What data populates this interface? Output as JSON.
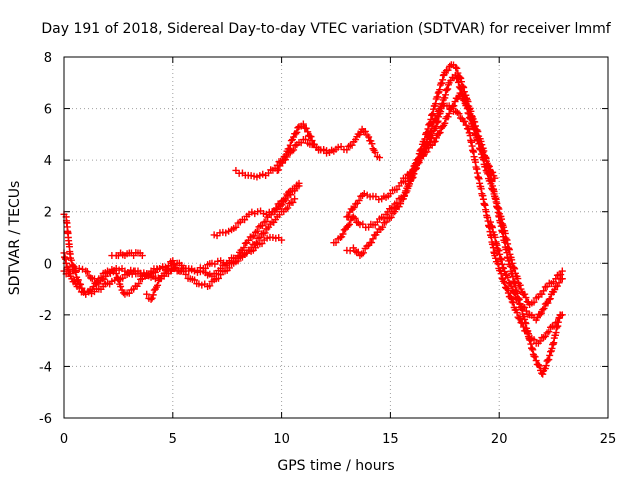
{
  "chart_data": {
    "type": "scatter",
    "title": "Day 191 of 2018, Sidereal Day-to-day VTEC variation (SDTVAR) for receiver lmmf",
    "xlabel": "GPS time / hours",
    "ylabel": "SDTVAR / TECUs",
    "xlim": [
      0,
      25
    ],
    "ylim": [
      -6,
      8
    ],
    "xticks": [
      0,
      5,
      10,
      15,
      20,
      25
    ],
    "yticks": [
      -6,
      -4,
      -2,
      0,
      2,
      4,
      6,
      8
    ],
    "grid": true,
    "marker": "plus",
    "color": "#ff0000",
    "series": [
      {
        "x": [
          0.0,
          0.1,
          0.2,
          0.3,
          0.5,
          0.7,
          1.0,
          1.3,
          1.6,
          2.0,
          2.4,
          2.6,
          2.8,
          3.2,
          3.6,
          4.0,
          4.4,
          4.8,
          5.2,
          5.6,
          6.0,
          6.4,
          6.8,
          7.2,
          7.6,
          8.0,
          8.4,
          8.8,
          9.2,
          9.6,
          10.0,
          10.4,
          10.8
        ],
        "y": [
          1.9,
          1.8,
          1.0,
          0.2,
          -0.3,
          -0.8,
          -1.2,
          -1.0,
          -0.6,
          -0.3,
          -0.4,
          -0.9,
          -1.2,
          -1.0,
          -0.6,
          -0.3,
          -0.2,
          -0.2,
          -0.3,
          -0.2,
          -0.3,
          -0.3,
          -0.5,
          -0.2,
          0.1,
          0.3,
          0.8,
          1.2,
          1.6,
          2.0,
          2.4,
          2.8,
          3.1
        ]
      },
      {
        "x": [
          0.0,
          0.1,
          0.3,
          0.6,
          1.0,
          1.4,
          1.8,
          2.2,
          2.6,
          3.0,
          3.4,
          3.8,
          4.2,
          4.6,
          5.0,
          5.4,
          5.8,
          6.2,
          6.6,
          7.0,
          7.4,
          7.8,
          8.2,
          8.6,
          9.0,
          9.4,
          9.8,
          10.2,
          10.6
        ],
        "y": [
          0.4,
          0.0,
          -0.5,
          -0.9,
          -1.2,
          -1.1,
          -0.9,
          -0.7,
          -0.6,
          -0.4,
          -0.3,
          -0.4,
          -0.6,
          -0.5,
          -0.2,
          -0.3,
          -0.6,
          -0.8,
          -0.9,
          -0.6,
          -0.3,
          0.0,
          0.3,
          0.6,
          1.0,
          1.4,
          1.8,
          2.1,
          2.5
        ]
      },
      {
        "x": [
          0.0,
          0.2,
          0.4,
          0.7,
          1.0,
          1.3,
          1.6,
          2.0,
          2.4,
          2.8,
          3.2,
          3.6,
          4.0,
          4.4,
          4.8,
          5.2,
          5.6,
          6.0,
          6.4,
          6.8,
          7.2,
          7.6,
          8.0,
          8.4,
          8.8,
          9.2,
          9.6,
          10.0
        ],
        "y": [
          -0.3,
          -0.4,
          -0.3,
          -0.2,
          -0.3,
          -0.6,
          -0.8,
          -0.4,
          -0.2,
          -0.3,
          -0.3,
          -0.5,
          -0.4,
          -0.2,
          -0.1,
          0.0,
          -0.2,
          -0.3,
          -0.2,
          0.0,
          0.1,
          0.0,
          0.2,
          0.4,
          0.6,
          0.9,
          1.0,
          0.9
        ]
      },
      {
        "x": [
          2.2,
          2.4,
          2.6,
          2.8,
          3.0,
          3.2,
          3.4,
          3.6
        ],
        "y": [
          0.3,
          0.3,
          0.4,
          0.3,
          0.4,
          0.3,
          0.4,
          0.3
        ]
      },
      {
        "x": [
          3.8,
          4.0,
          4.2,
          4.4,
          4.6,
          4.8,
          5.0
        ],
        "y": [
          -1.2,
          -1.4,
          -1.0,
          -0.6,
          -0.4,
          -0.1,
          0.1
        ]
      },
      {
        "x": [
          6.9,
          7.3,
          7.7,
          8.1,
          8.5,
          8.9,
          9.3,
          9.7,
          10.1,
          10.5,
          10.8
        ],
        "y": [
          1.1,
          1.2,
          1.3,
          1.6,
          1.9,
          2.0,
          1.9,
          2.0,
          2.4,
          2.8,
          3.0
        ]
      },
      {
        "x": [
          7.9,
          8.2,
          8.6,
          9.0,
          9.4,
          9.8,
          10.2,
          10.5,
          10.8,
          11.0,
          11.2,
          11.5,
          11.8,
          12.2,
          12.6,
          13.0,
          13.4,
          13.7,
          14.0,
          14.3,
          14.5
        ],
        "y": [
          3.6,
          3.5,
          3.4,
          3.4,
          3.5,
          3.8,
          4.2,
          4.8,
          5.3,
          5.4,
          5.1,
          4.6,
          4.4,
          4.3,
          4.5,
          4.4,
          4.8,
          5.2,
          4.9,
          4.3,
          4.1
        ]
      },
      {
        "x": [
          9.8,
          10.1,
          10.4,
          10.7,
          11.0,
          11.4,
          11.8,
          12.2
        ],
        "y": [
          3.6,
          4.0,
          4.3,
          4.6,
          4.8,
          4.6,
          4.4,
          4.3
        ]
      },
      {
        "x": [
          12.4,
          12.7,
          13.0,
          13.3,
          13.6,
          14.0,
          14.4,
          14.8,
          15.2,
          15.6,
          16.0,
          16.4,
          16.8,
          17.0,
          17.3,
          17.6,
          18.0,
          18.3,
          18.6,
          19.0,
          19.4,
          19.8,
          20.2,
          20.6,
          21.0,
          21.4,
          21.8,
          22.2,
          22.6,
          22.9
        ],
        "y": [
          0.8,
          1.0,
          1.4,
          1.8,
          1.5,
          1.4,
          1.6,
          1.9,
          2.3,
          2.6,
          3.3,
          4.2,
          5.0,
          5.5,
          6.0,
          6.1,
          5.9,
          5.6,
          5.2,
          3.5,
          2.0,
          0.3,
          -0.7,
          -1.5,
          -2.3,
          -2.9,
          -3.1,
          -2.7,
          -2.3,
          -2.0
        ]
      },
      {
        "x": [
          13.0,
          13.3,
          13.6,
          14.0,
          14.4,
          14.8,
          15.2,
          15.6,
          16.0,
          16.4,
          16.8,
          17.2,
          17.5,
          17.8,
          18.0,
          18.2,
          18.5,
          18.8,
          19.2,
          19.6,
          20.0,
          20.4,
          20.8,
          21.2,
          21.6,
          22.0,
          22.4,
          22.8
        ],
        "y": [
          0.5,
          0.6,
          0.3,
          0.7,
          1.2,
          1.6,
          2.0,
          2.5,
          3.4,
          4.4,
          5.4,
          6.6,
          7.4,
          7.7,
          7.6,
          7.2,
          6.4,
          5.6,
          4.6,
          3.4,
          1.8,
          0.2,
          -1.1,
          -2.3,
          -3.6,
          -4.3,
          -3.4,
          -2.0
        ]
      },
      {
        "x": [
          13.0,
          13.4,
          13.8,
          14.2,
          14.6,
          15.0,
          15.4,
          15.8,
          16.2,
          16.6,
          17.0,
          17.4,
          17.8,
          18.2,
          18.6,
          19.0,
          19.4,
          19.8,
          20.2,
          20.6,
          21.0,
          21.4,
          21.8,
          22.2,
          22.6,
          22.9
        ],
        "y": [
          1.8,
          2.3,
          2.7,
          2.6,
          2.5,
          2.7,
          3.0,
          3.3,
          3.9,
          4.3,
          4.7,
          5.3,
          6.0,
          6.6,
          6.0,
          4.8,
          3.6,
          2.6,
          1.4,
          0.0,
          -1.0,
          -1.6,
          -1.3,
          -0.9,
          -0.6,
          -0.3
        ]
      },
      {
        "x": [
          15.6,
          15.9,
          16.2,
          16.5,
          16.8,
          17.1,
          17.4,
          17.7,
          18.0,
          18.3,
          18.6,
          18.9,
          19.2,
          19.5,
          19.8
        ],
        "y": [
          3.3,
          3.5,
          3.8,
          4.2,
          4.7,
          5.3,
          6.2,
          7.0,
          7.3,
          6.6,
          5.8,
          5.0,
          4.4,
          3.8,
          3.3
        ]
      },
      {
        "x": [
          19.6,
          19.9,
          20.2,
          20.5,
          20.8,
          21.1,
          21.4,
          21.7,
          22.0,
          22.3,
          22.6,
          22.9
        ],
        "y": [
          1.6,
          0.7,
          -0.2,
          -0.8,
          -1.4,
          -1.7,
          -2.0,
          -2.2,
          -1.8,
          -1.4,
          -0.9,
          -0.6
        ]
      }
    ]
  }
}
